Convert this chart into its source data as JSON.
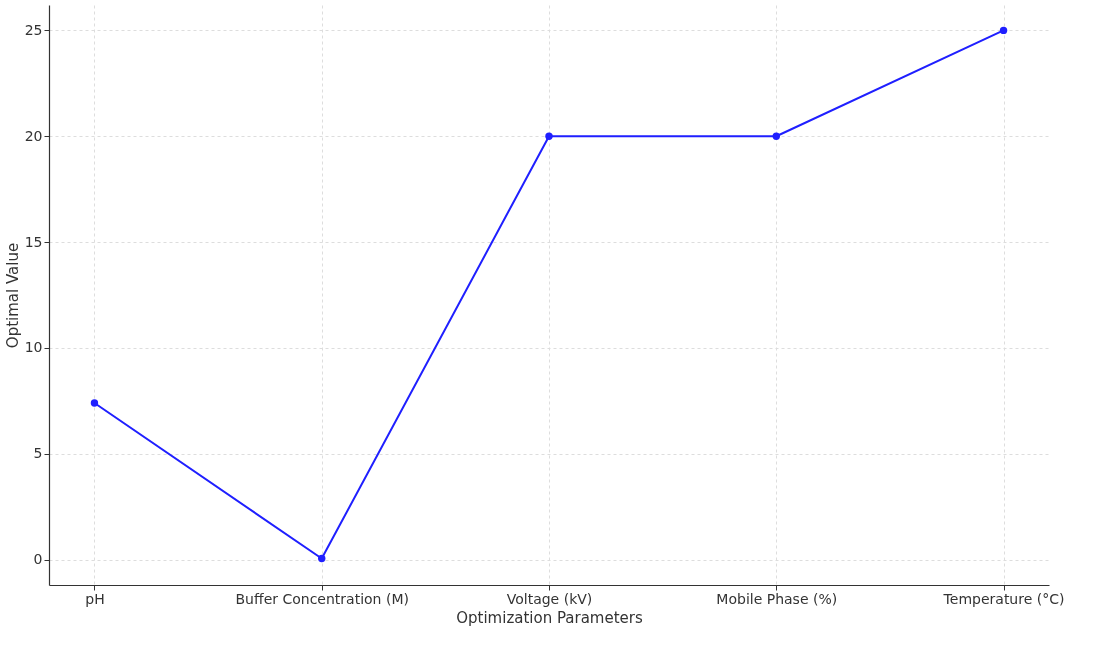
{
  "chart_data": {
    "type": "line",
    "xlabel": "Optimization Parameters",
    "ylabel": "Optimal Value",
    "categories": [
      "pH",
      "Buffer Concentration (M)",
      "Voltage (kV)",
      "Mobile Phase (%)",
      "Temperature (°C)"
    ],
    "series": [
      {
        "color": "#1f1fff",
        "values": [
          7.4,
          0.05,
          20,
          20,
          25
        ]
      }
    ],
    "ylim": [
      -1.2,
      26.2
    ],
    "yticks": [
      0,
      5,
      10,
      15,
      20,
      25
    ],
    "grid": true,
    "marker": "circle",
    "line_style": "solid"
  }
}
